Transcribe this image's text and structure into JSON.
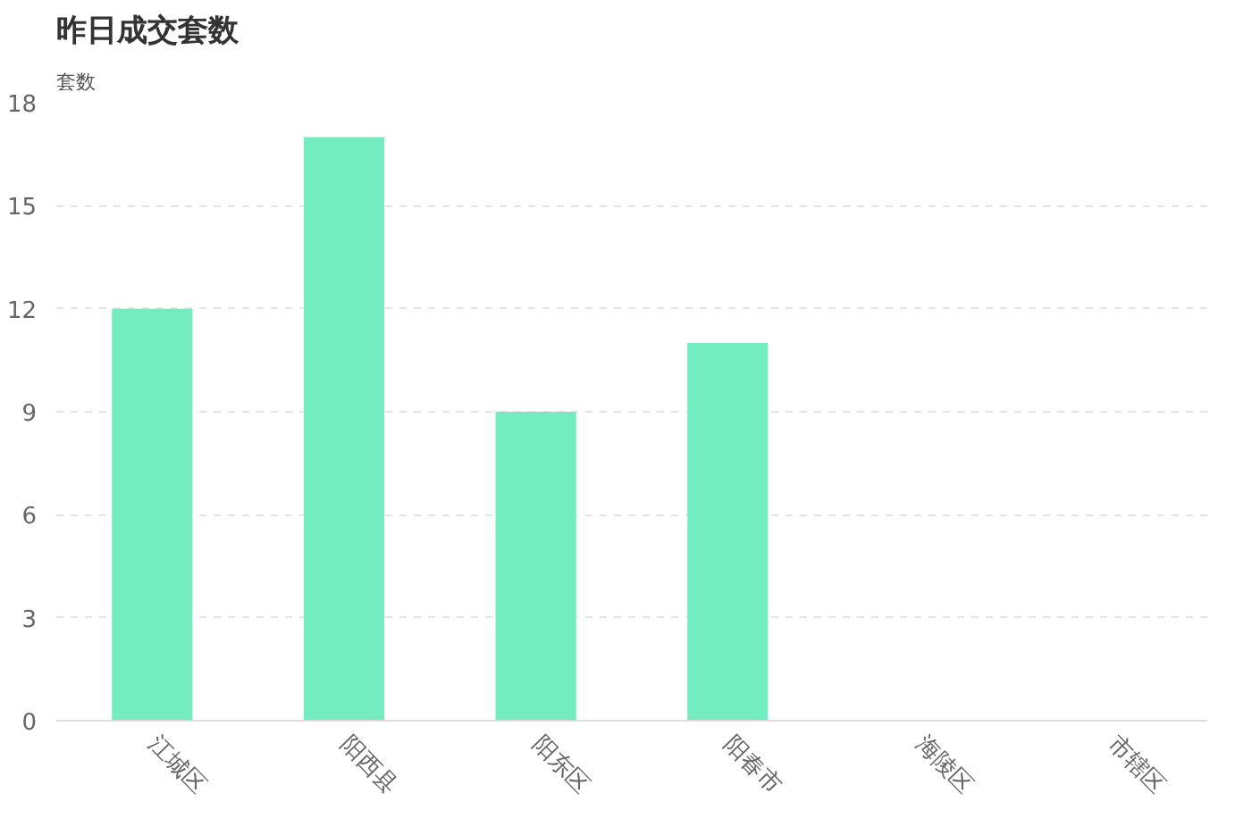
{
  "chart_data": {
    "type": "bar",
    "title": "昨日成交套数",
    "ylabel": "套数",
    "categories": [
      "江城区",
      "阳西县",
      "阳东区",
      "阳春市",
      "海陵区",
      "市辖区"
    ],
    "values": [
      12,
      17,
      9,
      11,
      0,
      0
    ],
    "color": "#73edbf",
    "ylim": [
      0,
      18
    ],
    "yticks": [
      0,
      3,
      6,
      9,
      12,
      15,
      18
    ],
    "grid": "y"
  }
}
